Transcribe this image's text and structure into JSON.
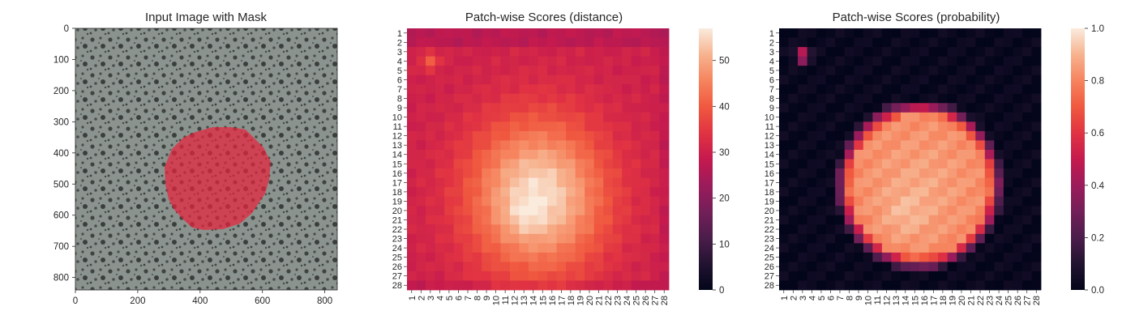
{
  "panels": [
    {
      "title": "Input Image with Mask",
      "x_ticks": [
        "0",
        "200",
        "400",
        "600",
        "800"
      ],
      "y_ticks": [
        "0",
        "100",
        "200",
        "300",
        "400",
        "500",
        "600",
        "700",
        "800"
      ]
    },
    {
      "title": "Patch-wise Scores (distance)",
      "colorbar_ticks": [
        "0",
        "10",
        "20",
        "30",
        "40",
        "50"
      ]
    },
    {
      "title": "Patch-wise Scores (probability)",
      "colorbar_ticks": [
        "0.0",
        "0.2",
        "0.4",
        "0.6",
        "0.8",
        "1.0"
      ]
    }
  ],
  "chart_data": [
    {
      "type": "image",
      "title": "Input Image with Mask",
      "xlim": [
        0,
        840
      ],
      "ylim": [
        840,
        0
      ],
      "x_ticks": [
        0,
        200,
        400,
        600,
        800
      ],
      "y_ticks": [
        0,
        100,
        200,
        300,
        400,
        500,
        600,
        700,
        800
      ],
      "mask_color": "#e8243c",
      "background_color": "#8a928f"
    },
    {
      "type": "heatmap",
      "title": "Patch-wise Scores (distance)",
      "rows": 28,
      "cols": 28,
      "x_labels": [
        "1",
        "2",
        "3",
        "4",
        "5",
        "6",
        "7",
        "8",
        "9",
        "10",
        "11",
        "12",
        "13",
        "14",
        "15",
        "16",
        "17",
        "18",
        "19",
        "20",
        "21",
        "22",
        "23",
        "24",
        "25",
        "26",
        "27",
        "28"
      ],
      "y_labels": [
        "1",
        "2",
        "3",
        "4",
        "5",
        "6",
        "7",
        "8",
        "9",
        "10",
        "11",
        "12",
        "13",
        "14",
        "15",
        "16",
        "17",
        "18",
        "19",
        "20",
        "21",
        "22",
        "23",
        "24",
        "25",
        "26",
        "27",
        "28"
      ],
      "vmin": 0,
      "vmax": 57,
      "colorbar_ticks": [
        0,
        10,
        20,
        30,
        40,
        50
      ],
      "colormap": "rocket",
      "peak_cell": {
        "row": 21,
        "col": 13,
        "value": 57
      },
      "edge_value": 30
    },
    {
      "type": "heatmap",
      "title": "Patch-wise Scores (probability)",
      "rows": 28,
      "cols": 28,
      "x_labels": [
        "1",
        "2",
        "3",
        "4",
        "5",
        "6",
        "7",
        "8",
        "9",
        "10",
        "11",
        "12",
        "13",
        "14",
        "15",
        "16",
        "17",
        "18",
        "19",
        "20",
        "21",
        "22",
        "23",
        "24",
        "25",
        "26",
        "27",
        "28"
      ],
      "y_labels": [
        "1",
        "2",
        "3",
        "4",
        "5",
        "6",
        "7",
        "8",
        "9",
        "10",
        "11",
        "12",
        "13",
        "14",
        "15",
        "16",
        "17",
        "18",
        "19",
        "20",
        "21",
        "22",
        "23",
        "24",
        "25",
        "26",
        "27",
        "28"
      ],
      "vmin": 0,
      "vmax": 1,
      "colorbar_ticks": [
        0.0,
        0.2,
        0.4,
        0.6,
        0.8,
        1.0
      ],
      "colormap": "rocket",
      "center_value": 0.85,
      "edge_value": 0.0
    }
  ]
}
